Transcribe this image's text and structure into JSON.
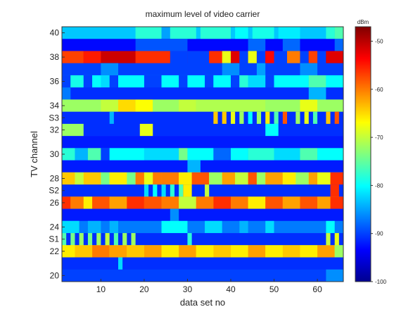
{
  "chart_data": {
    "type": "heatmap",
    "title": "maximum level of video carrier",
    "xlabel": "data set no",
    "ylabel": "TV channel",
    "x_ticks": [
      10,
      20,
      30,
      40,
      50,
      60
    ],
    "xlim": [
      1,
      66
    ],
    "colorbar": {
      "label": "dBm",
      "ticks": [
        -50,
        -60,
        -70,
        -80,
        -90,
        -100
      ],
      "range": [
        -100,
        -47
      ],
      "colormap": "jet"
    },
    "rows": [
      {
        "label": "40",
        "base": -83,
        "segments": [
          [
            18,
            24,
            -78
          ],
          [
            24,
            26,
            -85
          ],
          [
            26,
            32,
            -78
          ],
          [
            33,
            40,
            -78
          ],
          [
            41,
            44,
            -80
          ],
          [
            45,
            50,
            -79
          ],
          [
            51,
            56,
            -81
          ],
          [
            62,
            64,
            -78
          ],
          [
            64,
            66,
            -76
          ]
        ]
      },
      {
        "label": "",
        "base": -93,
        "segments": [
          [
            18,
            30,
            -89
          ],
          [
            44,
            48,
            -88
          ],
          [
            52,
            56,
            -88
          ],
          [
            64,
            66,
            -88
          ]
        ]
      },
      {
        "label": "38",
        "base": -53,
        "segments": [
          [
            1,
            6,
            -57
          ],
          [
            6,
            10,
            -55
          ],
          [
            10,
            18,
            -51
          ],
          [
            18,
            26,
            -56
          ],
          [
            26,
            30,
            -90
          ],
          [
            30,
            35,
            -90
          ],
          [
            35,
            38,
            -56
          ],
          [
            38,
            40,
            -68
          ],
          [
            40,
            42,
            -52
          ],
          [
            42,
            44,
            -90
          ],
          [
            44,
            46,
            -68
          ],
          [
            46,
            48,
            -90
          ],
          [
            48,
            50,
            -54
          ],
          [
            50,
            53,
            -90
          ],
          [
            53,
            56,
            -60
          ],
          [
            56,
            58,
            -90
          ],
          [
            58,
            60,
            -57
          ],
          [
            60,
            62,
            -90
          ],
          [
            62,
            66,
            -52
          ]
        ]
      },
      {
        "label": "",
        "base": -90,
        "segments": [
          [
            10,
            14,
            -86
          ],
          [
            38,
            42,
            -86
          ],
          [
            46,
            48,
            -85
          ],
          [
            56,
            60,
            -86
          ]
        ]
      },
      {
        "label": "36",
        "base": -82,
        "segments": [
          [
            1,
            3,
            -90
          ],
          [
            3,
            6,
            -79
          ],
          [
            6,
            8,
            -90
          ],
          [
            8,
            10,
            -80
          ],
          [
            12,
            14,
            -90
          ],
          [
            14,
            20,
            -80
          ],
          [
            20,
            24,
            -90
          ],
          [
            24,
            28,
            -80
          ],
          [
            28,
            30,
            -90
          ],
          [
            30,
            34,
            -80
          ],
          [
            34,
            36,
            -90
          ],
          [
            36,
            40,
            -80
          ],
          [
            40,
            42,
            -90
          ],
          [
            42,
            44,
            -78
          ],
          [
            44,
            48,
            -82
          ],
          [
            48,
            50,
            -90
          ],
          [
            50,
            58,
            -80
          ],
          [
            58,
            62,
            -76
          ],
          [
            62,
            66,
            -80
          ]
        ]
      },
      {
        "label": "",
        "base": -91,
        "segments": [
          [
            1,
            3,
            -87
          ],
          [
            58,
            62,
            -84
          ]
        ]
      },
      {
        "label": "34",
        "base": -72,
        "segments": [
          [
            1,
            10,
            -72
          ],
          [
            10,
            14,
            -70
          ],
          [
            14,
            18,
            -65
          ],
          [
            18,
            22,
            -67
          ],
          [
            22,
            28,
            -72
          ],
          [
            28,
            32,
            -70
          ],
          [
            32,
            40,
            -71
          ],
          [
            40,
            48,
            -71
          ],
          [
            48,
            56,
            -72
          ],
          [
            56,
            60,
            -68
          ],
          [
            60,
            66,
            -72
          ]
        ]
      },
      {
        "label": "S3",
        "base": -91,
        "segments": [
          [
            12,
            13,
            -84
          ],
          [
            36,
            37,
            -64
          ],
          [
            38,
            39,
            -64
          ],
          [
            40,
            41,
            -68
          ],
          [
            42,
            43,
            -72
          ],
          [
            44,
            45,
            -80
          ],
          [
            46,
            47,
            -72
          ],
          [
            48,
            49,
            -66
          ],
          [
            50,
            51,
            -76
          ],
          [
            52,
            53,
            -58
          ],
          [
            55,
            56,
            -72
          ],
          [
            57,
            58,
            -68
          ],
          [
            59,
            60,
            -76
          ],
          [
            62,
            63,
            -64
          ],
          [
            64,
            65,
            -58
          ]
        ]
      },
      {
        "label": "32",
        "base": -91,
        "segments": [
          [
            1,
            6,
            -72
          ],
          [
            19,
            22,
            -68
          ],
          [
            48,
            51,
            -80
          ]
        ]
      },
      {
        "label": "",
        "base": -92,
        "segments": []
      },
      {
        "label": "30",
        "base": -84,
        "segments": [
          [
            1,
            4,
            -78
          ],
          [
            4,
            7,
            -84
          ],
          [
            7,
            10,
            -76
          ],
          [
            10,
            12,
            -90
          ],
          [
            12,
            20,
            -80
          ],
          [
            20,
            28,
            -82
          ],
          [
            28,
            30,
            -74
          ],
          [
            30,
            36,
            -80
          ],
          [
            36,
            40,
            -88
          ],
          [
            40,
            44,
            -80
          ],
          [
            44,
            50,
            -78
          ],
          [
            50,
            56,
            -82
          ],
          [
            56,
            60,
            -76
          ],
          [
            60,
            66,
            -80
          ]
        ]
      },
      {
        "label": "",
        "base": -92,
        "segments": [
          [
            30,
            33,
            -84
          ]
        ]
      },
      {
        "label": "28",
        "base": -68,
        "segments": [
          [
            1,
            4,
            -64
          ],
          [
            4,
            6,
            -70
          ],
          [
            6,
            10,
            -64
          ],
          [
            10,
            12,
            -74
          ],
          [
            12,
            16,
            -66
          ],
          [
            16,
            18,
            -74
          ],
          [
            18,
            20,
            -60
          ],
          [
            20,
            22,
            -68
          ],
          [
            22,
            24,
            -60
          ],
          [
            24,
            28,
            -60
          ],
          [
            28,
            31,
            -66
          ],
          [
            31,
            35,
            -58
          ],
          [
            35,
            38,
            -72
          ],
          [
            38,
            41,
            -62
          ],
          [
            41,
            44,
            -70
          ],
          [
            44,
            46,
            -58
          ],
          [
            46,
            48,
            -72
          ],
          [
            48,
            52,
            -62
          ],
          [
            52,
            55,
            -66
          ],
          [
            55,
            58,
            -72
          ],
          [
            58,
            60,
            -62
          ],
          [
            60,
            63,
            -68
          ],
          [
            63,
            66,
            -56
          ]
        ]
      },
      {
        "label": "S2",
        "base": -91,
        "segments": [
          [
            20,
            21,
            -82
          ],
          [
            22,
            23,
            -80
          ],
          [
            24,
            25,
            -82
          ],
          [
            26,
            27,
            -78
          ],
          [
            28,
            29,
            -76
          ],
          [
            29,
            31,
            -66
          ],
          [
            34,
            35,
            -70
          ],
          [
            63,
            65,
            -56
          ]
        ]
      },
      {
        "label": "26",
        "base": -62,
        "segments": [
          [
            1,
            3,
            -56
          ],
          [
            3,
            6,
            -60
          ],
          [
            6,
            8,
            -66
          ],
          [
            8,
            12,
            -58
          ],
          [
            12,
            16,
            -62
          ],
          [
            16,
            20,
            -56
          ],
          [
            20,
            24,
            -58
          ],
          [
            24,
            28,
            -60
          ],
          [
            28,
            32,
            -70
          ],
          [
            32,
            36,
            -60
          ],
          [
            36,
            40,
            -56
          ],
          [
            40,
            44,
            -60
          ],
          [
            44,
            48,
            -66
          ],
          [
            48,
            52,
            -58
          ],
          [
            52,
            56,
            -62
          ],
          [
            56,
            60,
            -58
          ],
          [
            60,
            63,
            -62
          ],
          [
            63,
            66,
            -56
          ]
        ]
      },
      {
        "label": "",
        "base": -92,
        "segments": [
          [
            26,
            28,
            -86
          ]
        ]
      },
      {
        "label": "24",
        "base": -87,
        "segments": [
          [
            1,
            5,
            -82
          ],
          [
            7,
            10,
            -84
          ],
          [
            12,
            14,
            -84
          ],
          [
            24,
            30,
            -80
          ],
          [
            34,
            38,
            -82
          ],
          [
            42,
            44,
            -84
          ],
          [
            48,
            50,
            -82
          ],
          [
            62,
            64,
            -80
          ]
        ]
      },
      {
        "label": "S1",
        "base": -91,
        "segments": [
          [
            1,
            2,
            -76
          ],
          [
            3,
            4,
            -74
          ],
          [
            5,
            6,
            -72
          ],
          [
            7,
            8,
            -74
          ],
          [
            9,
            10,
            -72
          ],
          [
            11,
            12,
            -70
          ],
          [
            13,
            14,
            -76
          ],
          [
            15,
            16,
            -72
          ],
          [
            17,
            18,
            -72
          ],
          [
            30,
            31,
            -78
          ],
          [
            62,
            63,
            -70
          ],
          [
            64,
            65,
            -68
          ]
        ]
      },
      {
        "label": "22",
        "base": -68,
        "segments": [
          [
            1,
            4,
            -66
          ],
          [
            4,
            8,
            -64
          ],
          [
            8,
            12,
            -60
          ],
          [
            12,
            16,
            -62
          ],
          [
            16,
            20,
            -64
          ],
          [
            20,
            24,
            -62
          ],
          [
            24,
            28,
            -66
          ],
          [
            28,
            32,
            -62
          ],
          [
            32,
            36,
            -66
          ],
          [
            36,
            40,
            -64
          ],
          [
            40,
            44,
            -66
          ],
          [
            44,
            48,
            -62
          ],
          [
            48,
            52,
            -66
          ],
          [
            52,
            56,
            -64
          ],
          [
            56,
            60,
            -66
          ],
          [
            60,
            64,
            -62
          ],
          [
            64,
            66,
            -72
          ]
        ]
      },
      {
        "label": "",
        "base": -91,
        "segments": [
          [
            14,
            15,
            -82
          ]
        ]
      },
      {
        "label": "20",
        "base": -90,
        "segments": [
          [
            62,
            66,
            -86
          ]
        ]
      }
    ]
  }
}
